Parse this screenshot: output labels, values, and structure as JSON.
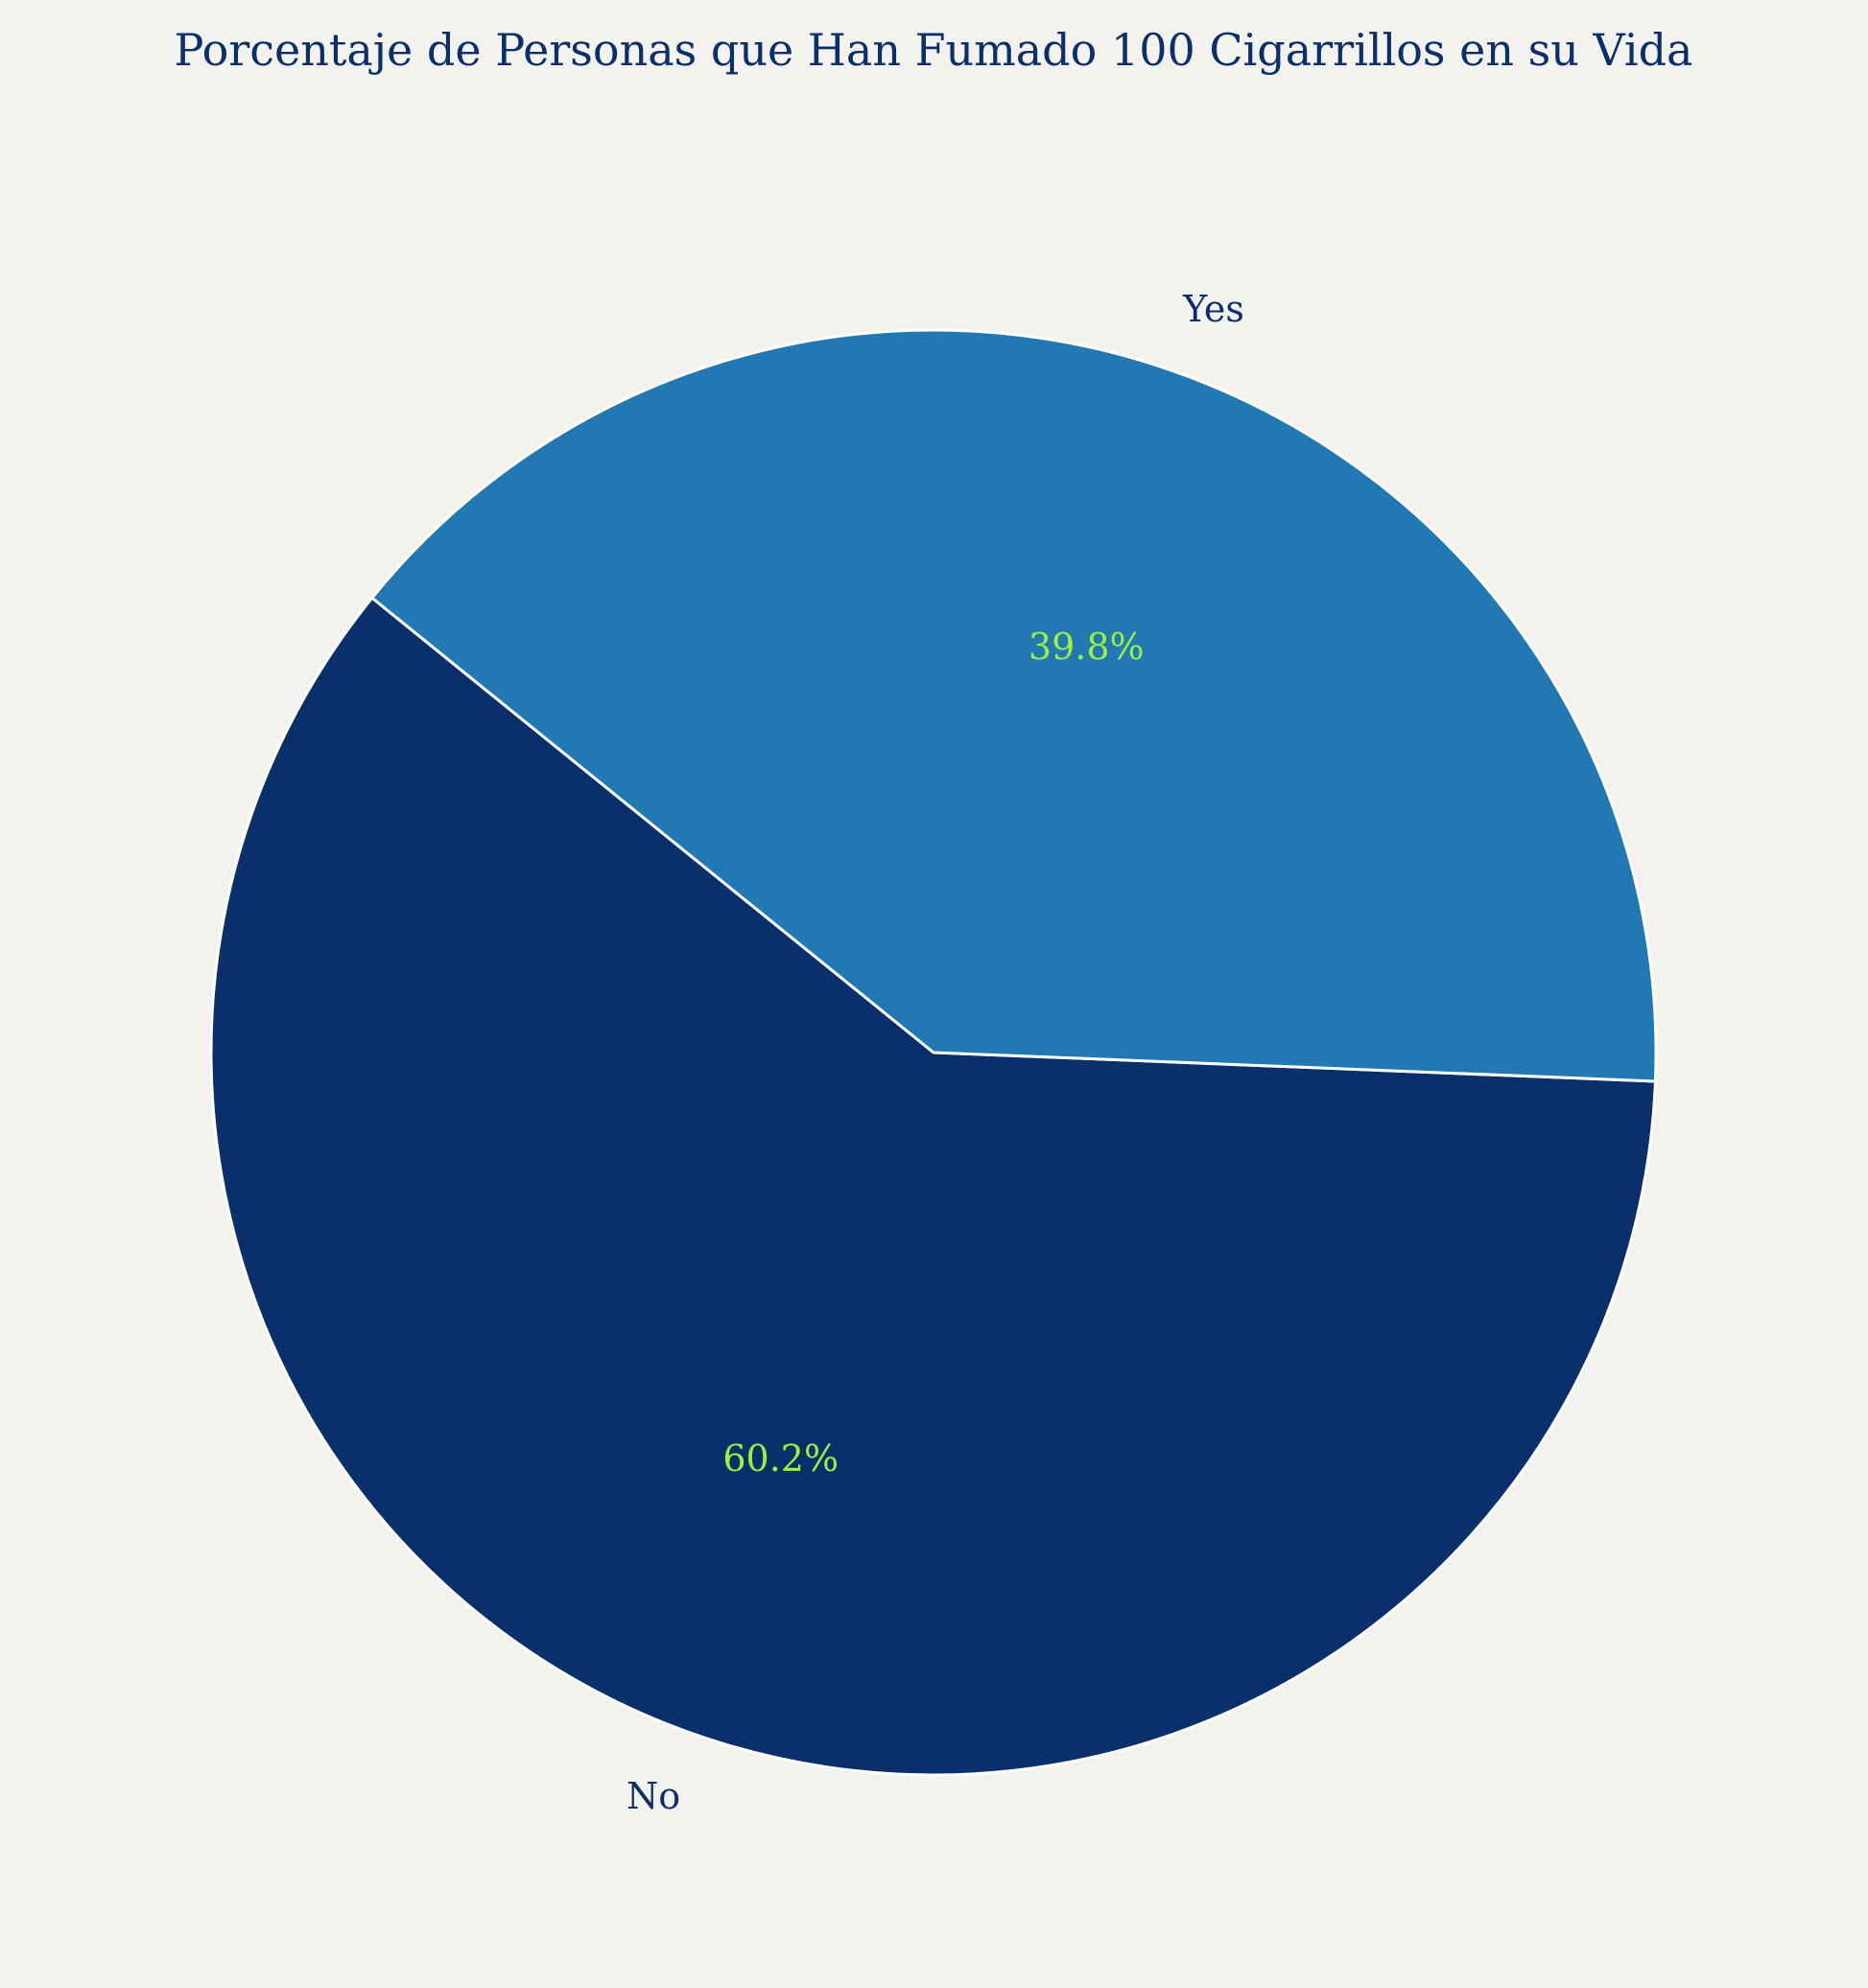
{
  "chart_data": {
    "type": "pie",
    "title": "Porcentaje de Personas que Han Fumado 100 Cigarrillos en su Vida",
    "slices": [
      {
        "label": "No",
        "value": 60.2,
        "pct_label": "60.2%",
        "color": "#0a2f6a"
      },
      {
        "label": "Yes",
        "value": 39.8,
        "pct_label": "39.8%",
        "color": "#2278b3"
      }
    ],
    "colors": {
      "background": "#f3f2ef",
      "title": "#0a2f6a",
      "slice_label": "#0a2f6a",
      "pct_label": "#9bf042",
      "edge": "#ffffff"
    }
  }
}
